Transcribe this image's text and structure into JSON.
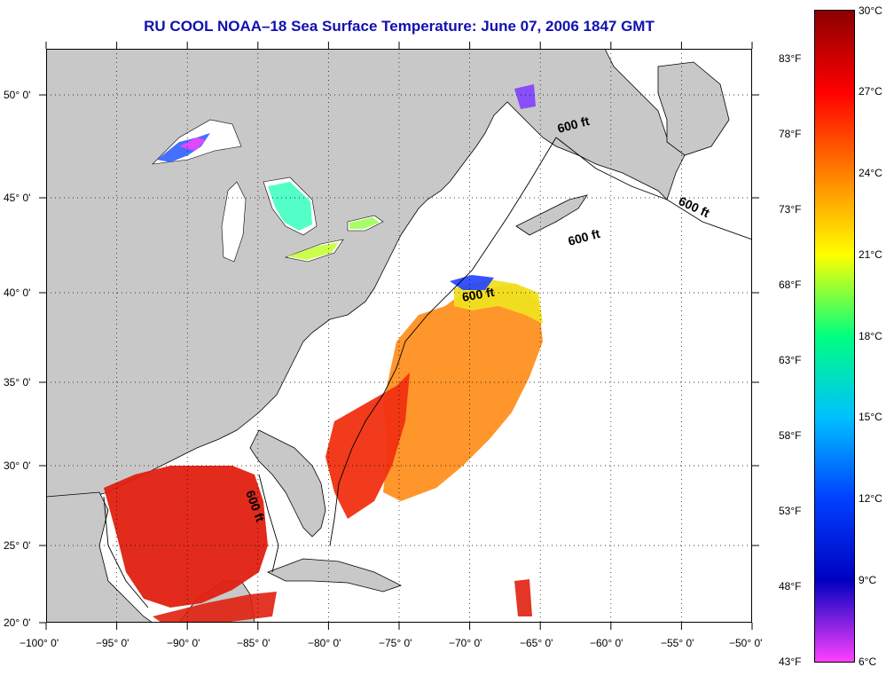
{
  "title": "RU COOL  NOAA–18  Sea Surface Temperature:  June 07, 2006 1847 GMT",
  "longitude_ticks": [
    "−100° 0'",
    "−95° 0'",
    "−90° 0'",
    "−85° 0'",
    "−80° 0'",
    "−75° 0'",
    "−70° 0'",
    "−65° 0'",
    "−60° 0'",
    "−55° 0'",
    "−50° 0'"
  ],
  "latitude_ticks": [
    "50° 0'",
    "45° 0'",
    "40° 0'",
    "35° 0'",
    "30° 0'",
    "25° 0'",
    "20° 0'"
  ],
  "contour_labels": [
    "600 ft",
    "600 ft",
    "600 ft",
    "600 ft",
    "600 ft"
  ],
  "colorbar": {
    "celsius": [
      "30°C",
      "27°C",
      "24°C",
      "21°C",
      "18°C",
      "15°C",
      "12°C",
      "9°C",
      "6°C"
    ],
    "fahrenheit": [
      "83°F",
      "78°F",
      "73°F",
      "68°F",
      "63°F",
      "58°F",
      "53°F",
      "48°F",
      "43°F"
    ],
    "colors_top_to_bottom": [
      "#8b0000",
      "#ff0000",
      "#ff8000",
      "#ffff00",
      "#00ff80",
      "#00c0ff",
      "#0040ff",
      "#0000c0",
      "#ff40ff"
    ]
  },
  "colors": {
    "land": "#c8c8c8",
    "ocean_no_data": "#ffffff",
    "title": "#1010b0"
  }
}
